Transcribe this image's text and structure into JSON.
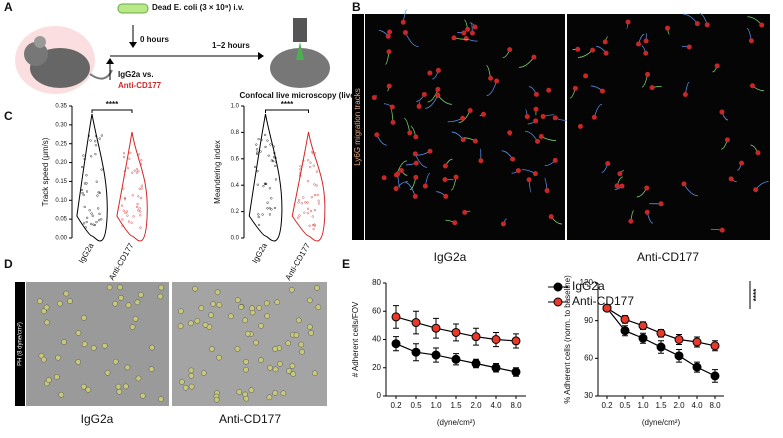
{
  "panel_labels": [
    "A",
    "B",
    "C",
    "D",
    "E"
  ],
  "schematic": {
    "injection": "Dead E. coli (3 × 10⁹) i.v.",
    "t0": "0 hours",
    "t1": "1–2 hours",
    "control": "IgG2a vs.",
    "treatment": "Anti-CD177",
    "readout": "Confocal live microscopy (liver)"
  },
  "microscopy": {
    "side_label": "Ly6G migration tracks",
    "conditions": [
      "IgG2a",
      "Anti-CD177"
    ]
  },
  "flow_images": {
    "side_label": "PH (8 dyne/cm²)",
    "conditions": [
      "IgG2a",
      "Anti-CD177"
    ]
  },
  "chart_data": [
    {
      "type": "violin",
      "ylabel": "Track speed (μm/s)",
      "categories": [
        "IgG2a",
        "Anti-CD177"
      ],
      "colors": [
        "#000000",
        "#d62728"
      ],
      "significance": "****",
      "ylim": [
        0,
        0.35
      ],
      "yticks": [
        {
          "value": 0,
          "label": "0.00"
        },
        {
          "value": 0.05,
          "label": "0.05"
        },
        {
          "value": 0.1,
          "label": "0.10"
        },
        {
          "value": 0.15,
          "label": "0.15"
        },
        {
          "value": 0.2,
          "label": "0.20"
        },
        {
          "value": 0.25,
          "label": "0.25"
        },
        {
          "value": 0.3,
          "label": "0.30"
        },
        {
          "value": 0.35,
          "label": "0.35"
        }
      ]
    },
    {
      "type": "violin",
      "ylabel": "Meandering index",
      "categories": [
        "IgG2a",
        "Anti-CD177"
      ],
      "colors": [
        "#000000",
        "#d62728"
      ],
      "significance": "****",
      "ylim": [
        0,
        1
      ],
      "yticks": [
        {
          "value": 0,
          "label": "0.0"
        },
        {
          "value": 0.2,
          "label": "0.2"
        },
        {
          "value": 0.4,
          "label": "0.4"
        },
        {
          "value": 0.6,
          "label": "0.6"
        },
        {
          "value": 0.8,
          "label": "0.8"
        },
        {
          "value": 1,
          "label": "1.0"
        }
      ]
    },
    {
      "type": "line",
      "ylabel": "# Adherent cells/FOV",
      "xlabel": "(dyne/cm²)",
      "categories": [
        "0.2",
        "0.5",
        "1.0",
        "1.5",
        "2.0",
        "4.0",
        "8.0"
      ],
      "ylim": [
        0,
        80
      ],
      "yticks": [
        0,
        20,
        40,
        60,
        80
      ],
      "series": [
        {
          "name": "IgG2a",
          "color": "#000000",
          "values": [
            37,
            31,
            29,
            26,
            23,
            20,
            17
          ],
          "errors": [
            5,
            6,
            5,
            4,
            3,
            3,
            3
          ]
        },
        {
          "name": "Anti-CD177",
          "color": "#e8392b",
          "values": [
            56,
            52,
            48,
            45,
            42,
            40,
            39
          ],
          "errors": [
            8,
            8,
            7,
            6,
            6,
            5,
            5
          ]
        }
      ]
    },
    {
      "type": "line",
      "ylabel": "% Adherent cells (norm. to baseline)",
      "xlabel": "(dyne/cm²)",
      "categories": [
        "0.2",
        "0.5",
        "1.0",
        "1.5",
        "2.0",
        "4.0",
        "8.0"
      ],
      "ylim": [
        30,
        120
      ],
      "yticks": [
        30,
        60,
        90,
        120
      ],
      "legend": "upper right",
      "significance": "****",
      "series": [
        {
          "name": "IgG2a",
          "color": "#000000",
          "values": [
            100,
            82,
            76,
            69,
            62,
            53,
            46
          ],
          "errors": [
            2,
            4,
            4,
            5,
            5,
            4,
            5
          ]
        },
        {
          "name": "Anti-CD177",
          "color": "#e8392b",
          "values": [
            100,
            91,
            86,
            80,
            75,
            73,
            70
          ],
          "errors": [
            1,
            3,
            3,
            3,
            4,
            4,
            4
          ]
        }
      ]
    }
  ]
}
